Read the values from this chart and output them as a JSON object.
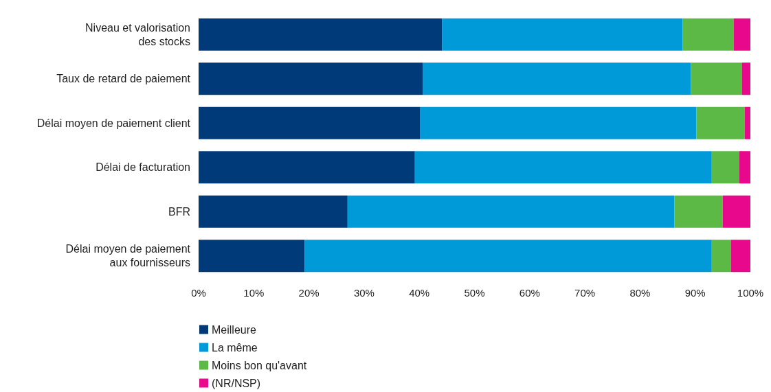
{
  "chart_data": {
    "type": "bar",
    "orientation": "horizontal",
    "stacked": true,
    "categories": [
      "Niveau et valorisation\ndes stocks",
      "Taux de retard de paiement",
      "Délai moyen de paiement client",
      "Délai de facturation",
      "BFR",
      "Délai moyen de paiement\naux fournisseurs"
    ],
    "series": [
      {
        "name": "Meilleure",
        "color": "#003a78",
        "values": [
          44.1,
          40.6,
          40.1,
          39.2,
          27.0,
          19.2
        ]
      },
      {
        "name": "La même",
        "color": "#009ad8",
        "values": [
          43.6,
          48.6,
          50.1,
          53.8,
          59.2,
          73.8
        ]
      },
      {
        "name": "Moins bon qu'avant",
        "color": "#5cb946",
        "values": [
          9.3,
          9.3,
          8.8,
          5.0,
          8.8,
          3.5
        ]
      },
      {
        "name": "(NR/NSP)",
        "color": "#e8088c",
        "values": [
          3.0,
          1.5,
          1.0,
          2.0,
          5.0,
          3.5
        ]
      }
    ],
    "xlim": [
      0,
      100
    ],
    "xticks": [
      {
        "value": 0,
        "label": "0%"
      },
      {
        "value": 10,
        "label": "10%"
      },
      {
        "value": 20,
        "label": "20%"
      },
      {
        "value": 30,
        "label": "30%"
      },
      {
        "value": 40,
        "label": "40%"
      },
      {
        "value": 50,
        "label": "50%"
      },
      {
        "value": 60,
        "label": "60%"
      },
      {
        "value": 70,
        "label": "70%"
      },
      {
        "value": 80,
        "label": "80%"
      },
      {
        "value": 90,
        "label": "90%"
      },
      {
        "value": 100,
        "label": "100%"
      }
    ],
    "grid": false,
    "legend": "bottom"
  }
}
